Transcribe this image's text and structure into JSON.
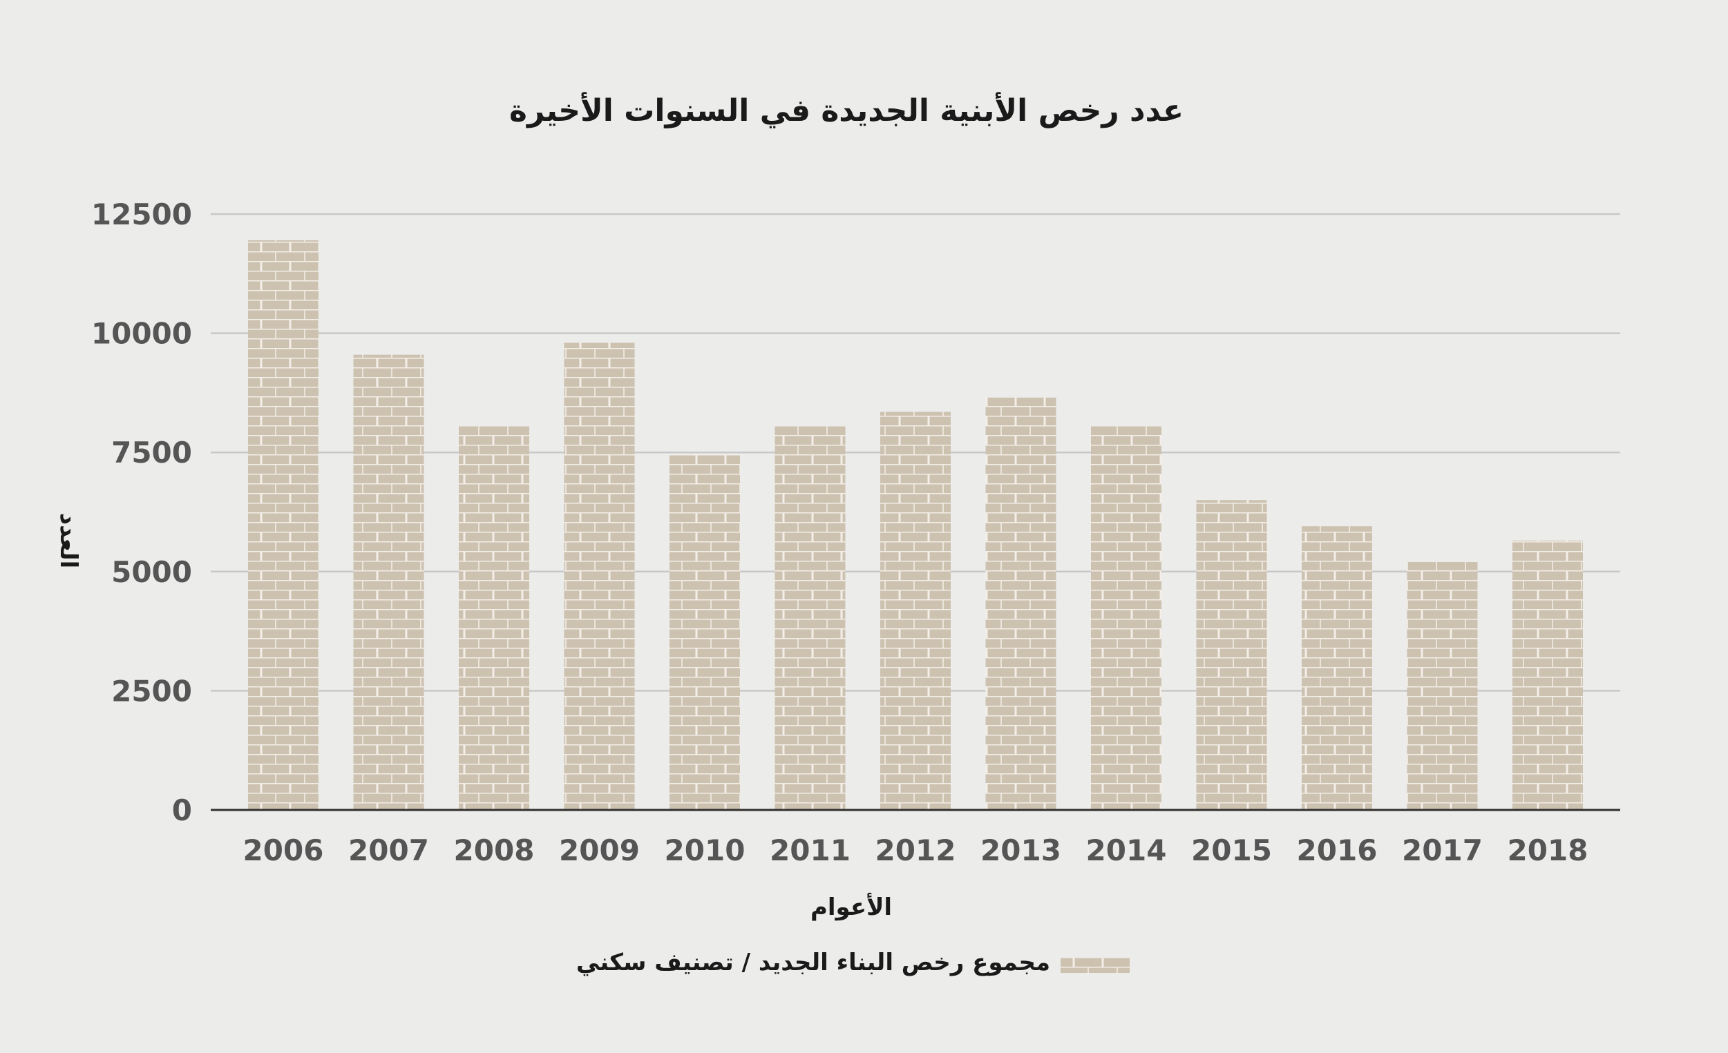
{
  "chart_data": {
    "type": "bar",
    "title": "عدد رخص الأبنية الجديدة في السنوات الأخيرة",
    "xlabel": "الأعوام",
    "ylabel": "العدد",
    "categories": [
      "2006",
      "2007",
      "2008",
      "2009",
      "2010",
      "2011",
      "2012",
      "2013",
      "2014",
      "2015",
      "2016",
      "2017",
      "2018"
    ],
    "series": [
      {
        "name": "مجموع رخص البناء الجديد / تصنيف سكني",
        "values": [
          11950,
          9550,
          8050,
          9800,
          7450,
          8050,
          8350,
          8650,
          8050,
          6500,
          5950,
          5200,
          5650
        ]
      }
    ],
    "ylim": [
      0,
      12500
    ],
    "yticks": [
      "0",
      "2500",
      "5000",
      "7500",
      "10000",
      "12500"
    ],
    "grid": true,
    "legend_position": "bottom-center",
    "colors": {
      "background": "#ececeb",
      "bar": "#cdc1b0",
      "brick_line": "#f3efe8",
      "gridline": "#c8c8c8",
      "axis": "#2f2f2f",
      "tick_text": "#555555",
      "title_text": "#1a1a1a"
    }
  }
}
